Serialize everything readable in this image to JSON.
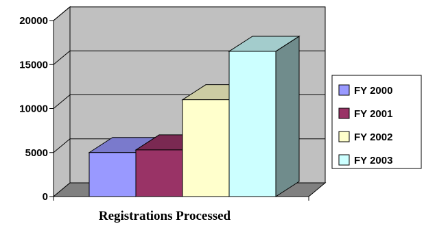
{
  "chart_data": {
    "type": "bar",
    "title": "",
    "xlabel": "Registrations Processed",
    "ylabel": "",
    "ylim": [
      0,
      20000
    ],
    "yticks": [
      0,
      5000,
      10000,
      15000,
      20000
    ],
    "grid": true,
    "legend_position": "right",
    "series": [
      {
        "name": "FY 2000",
        "values": [
          5000
        ],
        "color": "#9999ff"
      },
      {
        "name": "FY 2001",
        "values": [
          5300
        ],
        "color": "#993366"
      },
      {
        "name": "FY 2002",
        "values": [
          11000
        ],
        "color": "#ffffcc"
      },
      {
        "name": "FY 2003",
        "values": [
          16500
        ],
        "color": "#ccffff"
      }
    ],
    "wall_color": "#c0c0c0",
    "floor_color": "#808080"
  }
}
